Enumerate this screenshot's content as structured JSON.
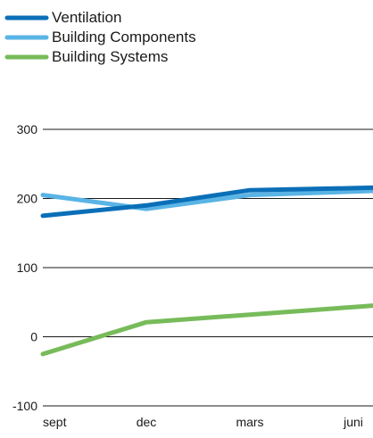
{
  "chart_data": {
    "type": "line",
    "x": [
      "sept",
      "dec",
      "mars",
      "juni"
    ],
    "ylim": [
      -100,
      300
    ],
    "yticks": [
      -100,
      0,
      100,
      200,
      300
    ],
    "legend_position": "top-left",
    "grid": "horizontal",
    "series": [
      {
        "name": "Ventilation",
        "color": "#0b6fb8",
        "values": [
          175,
          190,
          212,
          215
        ]
      },
      {
        "name": "Building Components",
        "color": "#5ab4e5",
        "values": [
          205,
          185,
          205,
          210
        ]
      },
      {
        "name": "Building Systems",
        "color": "#77bb5a",
        "values": [
          -25,
          21,
          32,
          43
        ]
      }
    ]
  }
}
